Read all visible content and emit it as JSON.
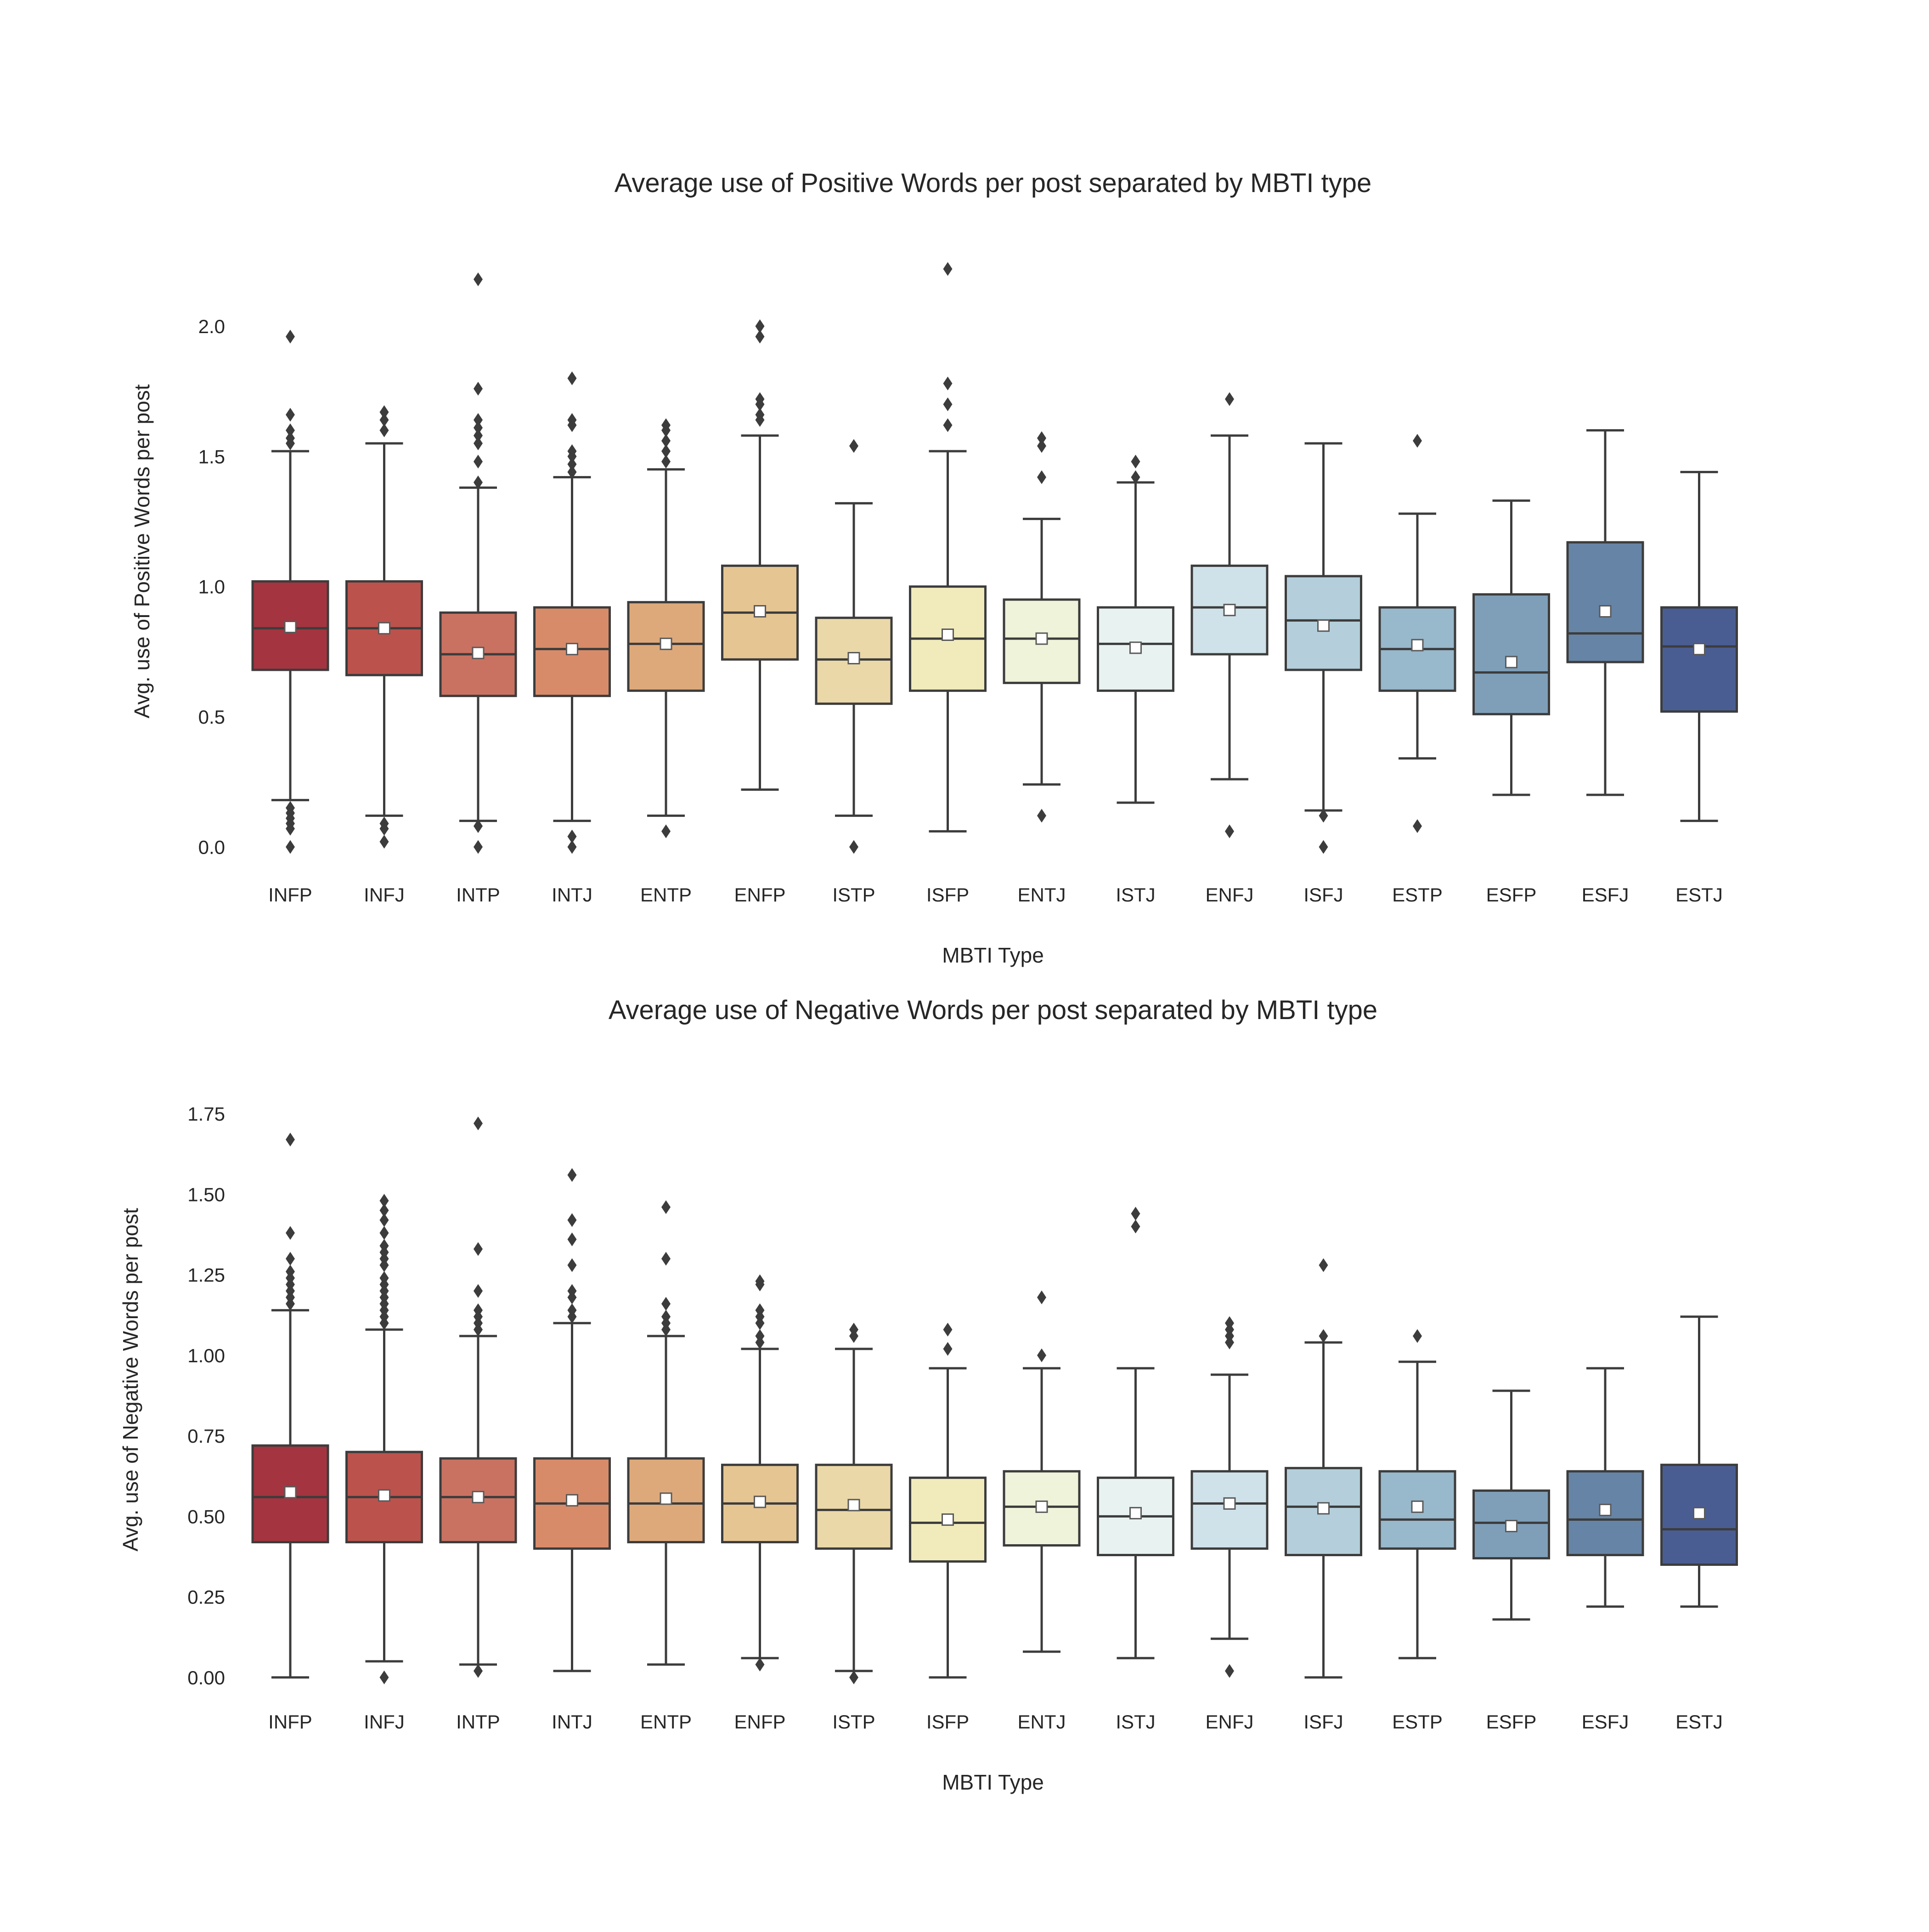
{
  "chart_data": [
    {
      "type": "box",
      "title": "Average use of Positive Words per post separated by MBTI type",
      "xlabel": "MBTI Type",
      "ylabel": "Avg. use of Positive Words per post",
      "ylim": [
        -0.1,
        2.3
      ],
      "yticks": [
        0.0,
        0.5,
        1.0,
        1.5,
        2.0
      ],
      "ytick_labels": [
        "0.0",
        "0.5",
        "1.0",
        "1.5",
        "2.0"
      ],
      "grid": false,
      "categories": [
        "INFP",
        "INFJ",
        "INTP",
        "INTJ",
        "ENTP",
        "ENFP",
        "ISTP",
        "ISFP",
        "ENTJ",
        "ISTJ",
        "ENFJ",
        "ISFJ",
        "ESTP",
        "ESFP",
        "ESFJ",
        "ESTJ"
      ],
      "colors": [
        "#a4343f",
        "#bc524c",
        "#c97262",
        "#d88b69",
        "#dea97a",
        "#e5c592",
        "#ebd8a8",
        "#f1ebbc",
        "#eef3d9",
        "#e8f2f1",
        "#d0e2e9",
        "#b4cfdb",
        "#98b8cb",
        "#7f9fb9",
        "#6684a6",
        "#4a5d93"
      ],
      "series": [
        {
          "category": "INFP",
          "q1": 0.68,
          "median": 0.84,
          "q3": 1.02,
          "whisker_low": 0.18,
          "whisker_high": 1.52,
          "mean": 0.845,
          "outliers": [
            0.0,
            0.07,
            0.09,
            0.11,
            0.13,
            0.15,
            1.55,
            1.57,
            1.6,
            1.66,
            1.96
          ]
        },
        {
          "category": "INFJ",
          "q1": 0.66,
          "median": 0.84,
          "q3": 1.02,
          "whisker_low": 0.12,
          "whisker_high": 1.55,
          "mean": 0.84,
          "outliers": [
            0.02,
            0.07,
            0.09,
            1.6,
            1.64,
            1.67
          ]
        },
        {
          "category": "INTP",
          "q1": 0.58,
          "median": 0.74,
          "q3": 0.9,
          "whisker_low": 0.1,
          "whisker_high": 1.38,
          "mean": 0.745,
          "outliers": [
            0.0,
            0.08,
            1.4,
            1.48,
            1.55,
            1.58,
            1.61,
            1.64,
            1.76,
            2.18
          ]
        },
        {
          "category": "INTJ",
          "q1": 0.58,
          "median": 0.76,
          "q3": 0.92,
          "whisker_low": 0.1,
          "whisker_high": 1.42,
          "mean": 0.76,
          "outliers": [
            0.0,
            0.04,
            1.44,
            1.47,
            1.5,
            1.52,
            1.62,
            1.64,
            1.8
          ]
        },
        {
          "category": "ENTP",
          "q1": 0.6,
          "median": 0.78,
          "q3": 0.94,
          "whisker_low": 0.12,
          "whisker_high": 1.45,
          "mean": 0.78,
          "outliers": [
            0.06,
            1.48,
            1.52,
            1.56,
            1.6,
            1.62
          ]
        },
        {
          "category": "ENFP",
          "q1": 0.72,
          "median": 0.9,
          "q3": 1.08,
          "whisker_low": 0.22,
          "whisker_high": 1.58,
          "mean": 0.905,
          "outliers": [
            1.64,
            1.66,
            1.7,
            1.72,
            1.96,
            2.0
          ]
        },
        {
          "category": "ISTP",
          "q1": 0.55,
          "median": 0.72,
          "q3": 0.88,
          "whisker_low": 0.12,
          "whisker_high": 1.32,
          "mean": 0.725,
          "outliers": [
            0.0,
            1.54
          ]
        },
        {
          "category": "ISFP",
          "q1": 0.6,
          "median": 0.8,
          "q3": 1.0,
          "whisker_low": 0.06,
          "whisker_high": 1.52,
          "mean": 0.815,
          "outliers": [
            1.62,
            1.7,
            1.78,
            2.22
          ]
        },
        {
          "category": "ENTJ",
          "q1": 0.63,
          "median": 0.8,
          "q3": 0.95,
          "whisker_low": 0.24,
          "whisker_high": 1.26,
          "mean": 0.8,
          "outliers": [
            0.12,
            1.42,
            1.54,
            1.57
          ]
        },
        {
          "category": "ISTJ",
          "q1": 0.6,
          "median": 0.78,
          "q3": 0.92,
          "whisker_low": 0.17,
          "whisker_high": 1.4,
          "mean": 0.765,
          "outliers": [
            1.42,
            1.48
          ]
        },
        {
          "category": "ENFJ",
          "q1": 0.74,
          "median": 0.92,
          "q3": 1.08,
          "whisker_low": 0.26,
          "whisker_high": 1.58,
          "mean": 0.91,
          "outliers": [
            0.06,
            1.72
          ]
        },
        {
          "category": "ISFJ",
          "q1": 0.68,
          "median": 0.87,
          "q3": 1.04,
          "whisker_low": 0.14,
          "whisker_high": 1.55,
          "mean": 0.85,
          "outliers": [
            0.0,
            0.12
          ]
        },
        {
          "category": "ESTP",
          "q1": 0.6,
          "median": 0.76,
          "q3": 0.92,
          "whisker_low": 0.34,
          "whisker_high": 1.28,
          "mean": 0.775,
          "outliers": [
            0.08,
            1.56
          ]
        },
        {
          "category": "ESFP",
          "q1": 0.51,
          "median": 0.67,
          "q3": 0.97,
          "whisker_low": 0.2,
          "whisker_high": 1.33,
          "mean": 0.71,
          "outliers": []
        },
        {
          "category": "ESFJ",
          "q1": 0.71,
          "median": 0.82,
          "q3": 1.17,
          "whisker_low": 0.2,
          "whisker_high": 1.6,
          "mean": 0.905,
          "outliers": []
        },
        {
          "category": "ESTJ",
          "q1": 0.52,
          "median": 0.77,
          "q3": 0.92,
          "whisker_low": 0.1,
          "whisker_high": 1.44,
          "mean": 0.76,
          "outliers": []
        }
      ]
    },
    {
      "type": "box",
      "title": "Average use of Negative Words per post separated by MBTI type",
      "xlabel": "MBTI Type",
      "ylabel": "Avg. use of Negative Words per post",
      "ylim": [
        -0.07,
        1.87
      ],
      "yticks": [
        0.0,
        0.25,
        0.5,
        0.75,
        1.0,
        1.25,
        1.5,
        1.75
      ],
      "ytick_labels": [
        "0.00",
        "0.25",
        "0.50",
        "0.75",
        "1.00",
        "1.25",
        "1.50",
        "1.75"
      ],
      "grid": false,
      "categories": [
        "INFP",
        "INFJ",
        "INTP",
        "INTJ",
        "ENTP",
        "ENFP",
        "ISTP",
        "ISFP",
        "ENTJ",
        "ISTJ",
        "ENFJ",
        "ISFJ",
        "ESTP",
        "ESFP",
        "ESFJ",
        "ESTJ"
      ],
      "colors": [
        "#a4343f",
        "#bc524c",
        "#c97262",
        "#d88b69",
        "#dea97a",
        "#e5c592",
        "#ebd8a8",
        "#f1ebbc",
        "#eef3d9",
        "#e8f2f1",
        "#d0e2e9",
        "#b4cfdb",
        "#98b8cb",
        "#7f9fb9",
        "#6684a6",
        "#4a5d93"
      ],
      "series": [
        {
          "category": "INFP",
          "q1": 0.42,
          "median": 0.56,
          "q3": 0.72,
          "whisker_low": 0.0,
          "whisker_high": 1.14,
          "mean": 0.575,
          "outliers": [
            1.16,
            1.18,
            1.2,
            1.22,
            1.24,
            1.26,
            1.3,
            1.38,
            1.67
          ]
        },
        {
          "category": "INFJ",
          "q1": 0.42,
          "median": 0.56,
          "q3": 0.7,
          "whisker_low": 0.05,
          "whisker_high": 1.08,
          "mean": 0.565,
          "outliers": [
            0.0,
            1.1,
            1.12,
            1.14,
            1.16,
            1.18,
            1.2,
            1.22,
            1.24,
            1.28,
            1.3,
            1.32,
            1.34,
            1.38,
            1.42,
            1.45,
            1.48
          ]
        },
        {
          "category": "INTP",
          "q1": 0.42,
          "median": 0.56,
          "q3": 0.68,
          "whisker_low": 0.04,
          "whisker_high": 1.06,
          "mean": 0.56,
          "outliers": [
            0.02,
            1.08,
            1.1,
            1.12,
            1.14,
            1.2,
            1.33,
            1.72
          ]
        },
        {
          "category": "INTJ",
          "q1": 0.4,
          "median": 0.54,
          "q3": 0.68,
          "whisker_low": 0.02,
          "whisker_high": 1.1,
          "mean": 0.55,
          "outliers": [
            1.12,
            1.14,
            1.18,
            1.2,
            1.28,
            1.36,
            1.42,
            1.56
          ]
        },
        {
          "category": "ENTP",
          "q1": 0.42,
          "median": 0.54,
          "q3": 0.68,
          "whisker_low": 0.04,
          "whisker_high": 1.06,
          "mean": 0.555,
          "outliers": [
            1.08,
            1.1,
            1.12,
            1.16,
            1.3,
            1.46
          ]
        },
        {
          "category": "ENFP",
          "q1": 0.42,
          "median": 0.54,
          "q3": 0.66,
          "whisker_low": 0.06,
          "whisker_high": 1.02,
          "mean": 0.545,
          "outliers": [
            0.04,
            1.04,
            1.06,
            1.1,
            1.12,
            1.14,
            1.22,
            1.23
          ]
        },
        {
          "category": "ISTP",
          "q1": 0.4,
          "median": 0.52,
          "q3": 0.66,
          "whisker_low": 0.02,
          "whisker_high": 1.02,
          "mean": 0.535,
          "outliers": [
            0.0,
            1.06,
            1.08
          ]
        },
        {
          "category": "ISFP",
          "q1": 0.36,
          "median": 0.48,
          "q3": 0.62,
          "whisker_low": 0.0,
          "whisker_high": 0.96,
          "mean": 0.49,
          "outliers": [
            1.02,
            1.08
          ]
        },
        {
          "category": "ENTJ",
          "q1": 0.41,
          "median": 0.53,
          "q3": 0.64,
          "whisker_low": 0.08,
          "whisker_high": 0.96,
          "mean": 0.53,
          "outliers": [
            1.0,
            1.18
          ]
        },
        {
          "category": "ISTJ",
          "q1": 0.38,
          "median": 0.5,
          "q3": 0.62,
          "whisker_low": 0.06,
          "whisker_high": 0.96,
          "mean": 0.51,
          "outliers": [
            1.4,
            1.44
          ]
        },
        {
          "category": "ENFJ",
          "q1": 0.4,
          "median": 0.54,
          "q3": 0.64,
          "whisker_low": 0.12,
          "whisker_high": 0.94,
          "mean": 0.54,
          "outliers": [
            0.02,
            1.04,
            1.06,
            1.08,
            1.1
          ]
        },
        {
          "category": "ISFJ",
          "q1": 0.38,
          "median": 0.53,
          "q3": 0.65,
          "whisker_low": 0.0,
          "whisker_high": 1.04,
          "mean": 0.525,
          "outliers": [
            1.06,
            1.28
          ]
        },
        {
          "category": "ESTP",
          "q1": 0.4,
          "median": 0.49,
          "q3": 0.64,
          "whisker_low": 0.06,
          "whisker_high": 0.98,
          "mean": 0.53,
          "outliers": [
            1.06
          ]
        },
        {
          "category": "ESFP",
          "q1": 0.37,
          "median": 0.48,
          "q3": 0.58,
          "whisker_low": 0.18,
          "whisker_high": 0.89,
          "mean": 0.47,
          "outliers": []
        },
        {
          "category": "ESFJ",
          "q1": 0.38,
          "median": 0.49,
          "q3": 0.64,
          "whisker_low": 0.22,
          "whisker_high": 0.96,
          "mean": 0.52,
          "outliers": []
        },
        {
          "category": "ESTJ",
          "q1": 0.35,
          "median": 0.46,
          "q3": 0.66,
          "whisker_low": 0.22,
          "whisker_high": 1.12,
          "mean": 0.51,
          "outliers": []
        }
      ]
    }
  ]
}
